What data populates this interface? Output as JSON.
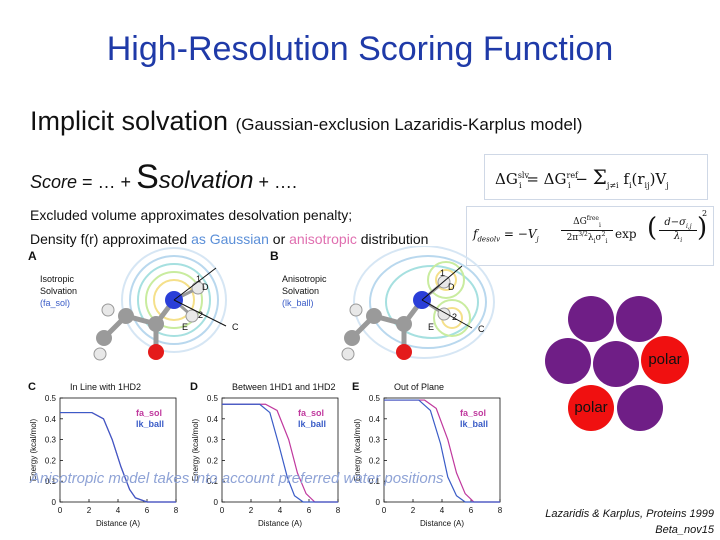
{
  "title": "High-Resolution Scoring Function",
  "heading": {
    "main": "Implicit solvation",
    "sub": "(Gaussian-exclusion Lazaridis-Karplus model)"
  },
  "score": {
    "label": "Score",
    "rest1": " = … + ",
    "s": "S",
    "solv": "solvation",
    "rest2": " + …."
  },
  "notes": {
    "line1": "Excluded volume approximates desolvation penalty;",
    "line2_prefix": "Density f(r) approximated ",
    "as_gaussian": "as Gaussian",
    "or": " or ",
    "anisotropic": "anisotropic",
    "distribution": " distribution"
  },
  "formula1": {
    "lhs": "ΔG",
    "lhs_sup": "slv",
    "lhs_sub": "i",
    "eq": " = ΔG",
    "ref_sup": "ref",
    "ref_sub": "i",
    "minus": " − ",
    "sum": "Σ",
    "sum_sub": "j≠i",
    "tail": "f",
    "tail_sub": "i",
    "tail2": "(r",
    "tail2_sub": "ij",
    "tail3": ")V",
    "tail3_sub": "j"
  },
  "formula2": {
    "lhs": "f",
    "lhs_sub": "desolv",
    "eq": " = −V",
    "vsub": "j",
    "num": "ΔG",
    "num_sup": "free",
    "num_sub": "i",
    "den": "2π",
    "den_sup": "3/2",
    "den2": "λ",
    "den2_sub": "i",
    "den3": "σ",
    "den3_sup": "2",
    "den3_sub": "i",
    "exp": " exp",
    "paren_num": "d−σ",
    "paren_num_sub": "i,j",
    "paren_den": "λ",
    "paren_den_sub": "i"
  },
  "panels": {
    "A": {
      "letter": "A",
      "caption1": "Isotropic",
      "caption2": "Solvation",
      "caption3": "(fa_sol)"
    },
    "B": {
      "letter": "B",
      "caption1": "Anisotropic",
      "caption2": "Solvation",
      "caption3": "(lk_ball)"
    },
    "atom_labels": {
      "D": "D",
      "E": "E",
      "C": "C",
      "one": "1",
      "two": "2"
    }
  },
  "plots": [
    {
      "letter": "C",
      "title": "In Line with 1HD2"
    },
    {
      "letter": "D",
      "title": "Between 1HD1 and 1HD2"
    },
    {
      "letter": "E",
      "title": "Out of Plane"
    }
  ],
  "plot_common": {
    "ylabel": "Energy (kcal/mol)",
    "xlabel": "Distance (A)",
    "yticks": [
      "0.5",
      "0.4",
      "0.3",
      "0.2",
      "0.1",
      "0"
    ],
    "xticks": [
      "0",
      "2",
      "4",
      "6",
      "8"
    ],
    "legend1": "fa_sol",
    "legend2": "lk_ball"
  },
  "chart_data": [
    {
      "type": "line",
      "title": "In Line with 1HD2",
      "xlabel": "Distance (A)",
      "ylabel": "Energy (kcal/mol)",
      "xlim": [
        0,
        8
      ],
      "ylim": [
        0,
        0.5
      ],
      "series": [
        {
          "name": "fa_sol",
          "x": [
            0,
            2.2,
            3.0,
            3.6,
            4.2,
            4.8,
            5.2,
            6.0,
            8
          ],
          "y": [
            0.43,
            0.43,
            0.4,
            0.3,
            0.17,
            0.06,
            0.02,
            0,
            0
          ]
        },
        {
          "name": "lk_ball",
          "x": [
            0,
            2.2,
            3.0,
            3.6,
            4.2,
            4.8,
            5.2,
            6.0,
            8
          ],
          "y": [
            0.43,
            0.43,
            0.4,
            0.3,
            0.17,
            0.06,
            0.02,
            0,
            0
          ]
        }
      ]
    },
    {
      "type": "line",
      "title": "Between 1HD1 and 1HD2",
      "xlabel": "Distance (A)",
      "ylabel": "Energy (kcal/mol)",
      "xlim": [
        0,
        8
      ],
      "ylim": [
        0,
        0.5
      ],
      "series": [
        {
          "name": "fa_sol",
          "x": [
            0,
            3.0,
            3.8,
            4.6,
            5.2,
            5.8,
            6.4,
            8
          ],
          "y": [
            0.47,
            0.47,
            0.44,
            0.3,
            0.14,
            0.04,
            0,
            0
          ]
        },
        {
          "name": "lk_ball",
          "x": [
            0,
            2.6,
            3.3,
            3.9,
            4.5,
            5.0,
            5.6,
            8
          ],
          "y": [
            0.47,
            0.47,
            0.43,
            0.28,
            0.12,
            0.03,
            0,
            0
          ]
        }
      ]
    },
    {
      "type": "line",
      "title": "Out of Plane",
      "xlabel": "Distance (A)",
      "ylabel": "Energy (kcal/mol)",
      "xlim": [
        0,
        8
      ],
      "ylim": [
        0,
        0.5
      ],
      "series": [
        {
          "name": "fa_sol",
          "x": [
            0,
            2.8,
            3.6,
            4.4,
            5.0,
            5.6,
            6.2,
            8
          ],
          "y": [
            0.49,
            0.49,
            0.45,
            0.3,
            0.14,
            0.04,
            0,
            0
          ]
        },
        {
          "name": "lk_ball",
          "x": [
            0,
            2.4,
            3.2,
            3.9,
            4.4,
            5.0,
            5.6,
            8
          ],
          "y": [
            0.49,
            0.49,
            0.44,
            0.28,
            0.12,
            0.03,
            0,
            0
          ]
        }
      ]
    }
  ],
  "circles": {
    "polar1": "polar",
    "polar2": "polar",
    "color_purple": "#6f1e86",
    "color_red": "#f01010"
  },
  "overlay_text": "Anisotropic model takes into account preferred water positions",
  "citation1": "Lazaridis & Karplus, Proteins 1999",
  "citation2": "Beta_nov15"
}
